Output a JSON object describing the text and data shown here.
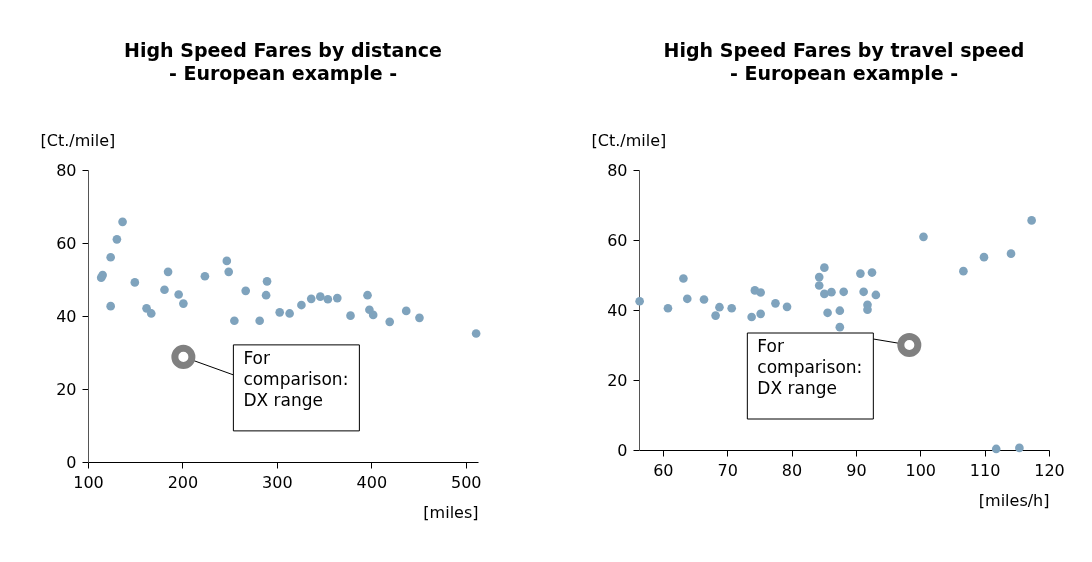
{
  "chart_data": [
    {
      "type": "scatter",
      "title": "High Speed Fares by distance",
      "subtitle": "- European example -",
      "xlabel": "[miles]",
      "ylabel": "[Ct./mile]",
      "xlim": [
        100,
        513
      ],
      "xticks": [
        100,
        200,
        300,
        400,
        500
      ],
      "ylim": [
        0,
        80
      ],
      "yticks": [
        0,
        20,
        40,
        60,
        80
      ],
      "grid": false,
      "marker": "circle",
      "series": [
        {
          "color": "#7fa3bd",
          "x": [
            114,
            115.5,
            124,
            124,
            130.6,
            136.6,
            149.6,
            162,
            167,
            181,
            184.8,
            196,
            201,
            223.8,
            247,
            249,
            255,
            267,
            281.8,
            288.6,
            289.6,
            303,
            313.5,
            326,
            336.4,
            346,
            354,
            364,
            378,
            396,
            398,
            402,
            419.5,
            437,
            451,
            511
          ],
          "values": [
            50.5,
            51.2,
            56.1,
            42.7,
            61,
            65.8,
            49.2,
            42.1,
            40.7,
            47.2,
            52.1,
            45.9,
            43.4,
            50.9,
            55.1,
            52.1,
            38.7,
            46.9,
            38.7,
            45.7,
            49.5,
            41,
            40.7,
            43,
            44.7,
            45.3,
            44.6,
            44.9,
            40.1,
            45.7,
            41.7,
            40.3,
            38.4,
            41.4,
            39.5,
            35.2
          ]
        },
        {
          "color": "#808080",
          "x": [
            201
          ],
          "values": [
            28.8
          ]
        }
      ],
      "annotations": [
        {
          "text": "For\ncomparison:\nDX range",
          "x": 201,
          "y": 28.8
        }
      ]
    },
    {
      "type": "scatter",
      "title": "High Speed Fares by travel speed",
      "subtitle": "- European example -",
      "xlabel": "[miles/h]",
      "ylabel": "[Ct./mile]",
      "xlim": [
        56.3,
        120
      ],
      "xticks": [
        60,
        70,
        80,
        90,
        100,
        110,
        120
      ],
      "ylim": [
        0,
        80
      ],
      "yticks": [
        0,
        20,
        40,
        60,
        80
      ],
      "grid": false,
      "marker": "circle",
      "series": [
        {
          "color": "#7fa3bd",
          "x": [
            56.4,
            60.8,
            63.2,
            63.8,
            66.4,
            68.2,
            68.8,
            70.7,
            73.8,
            74.3,
            75.2,
            75.2,
            77.5,
            79.3,
            84.3,
            84.3,
            85.1,
            85.1,
            85.6,
            86.2,
            87.5,
            87.5,
            88.1,
            90.7,
            91.2,
            91.8,
            91.8,
            92.5,
            93.1,
            100.5,
            106.7,
            109.9,
            114.1,
            117.3,
            111.8,
            115.4
          ],
          "values": [
            42.5,
            40.5,
            49,
            43.2,
            43,
            38.4,
            40.8,
            40.5,
            38,
            45.6,
            45,
            38.9,
            41.9,
            40.9,
            49.4,
            47,
            52.1,
            44.6,
            39.2,
            45.1,
            39.8,
            35.1,
            45.2,
            50.4,
            45.2,
            41.5,
            40.1,
            50.7,
            44.3,
            60.9,
            51.1,
            55.1,
            56.1,
            65.6,
            0.3,
            0.6
          ]
        },
        {
          "color": "#808080",
          "x": [
            98.3
          ],
          "values": [
            30
          ]
        }
      ],
      "annotations": [
        {
          "text": "For\ncomparison:\nDX range",
          "x": 98.3,
          "y": 30
        }
      ]
    }
  ]
}
